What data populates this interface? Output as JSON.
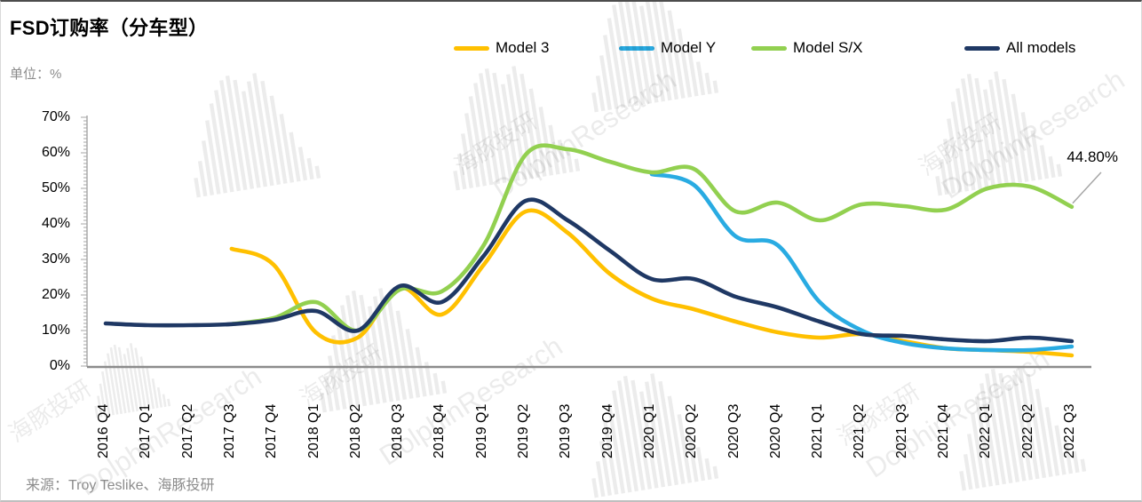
{
  "page": {
    "title": "FSD订购率（分车型）",
    "unit_label": "单位：%",
    "source": "来源：Troy Teslike、海豚投研"
  },
  "watermark": {
    "cn": "海豚投研",
    "en": "DolphinResearch"
  },
  "chart_data": {
    "type": "line",
    "title": "FSD订购率（分车型）",
    "unit": "%",
    "legend_position": "top",
    "grid": false,
    "ylim": [
      0,
      70
    ],
    "y_ticks": [
      "0%",
      "10%",
      "20%",
      "30%",
      "40%",
      "50%",
      "60%",
      "70%"
    ],
    "categories": [
      "2016 Q4",
      "2017 Q1",
      "2017 Q2",
      "2017 Q3",
      "2017 Q4",
      "2018 Q1",
      "2018 Q2",
      "2018 Q3",
      "2018 Q4",
      "2019 Q1",
      "2019 Q2",
      "2019 Q3",
      "2019 Q4",
      "2020 Q1",
      "2020 Q2",
      "2020 Q3",
      "2020 Q4",
      "2021 Q1",
      "2021 Q2",
      "2021 Q3",
      "2021 Q4",
      "2022 Q1",
      "2022 Q2",
      "2022 Q3"
    ],
    "series": [
      {
        "name": "Model 3",
        "color": "#FFC000",
        "values": [
          null,
          null,
          null,
          33,
          28.5,
          9.5,
          8,
          22,
          14.5,
          28.5,
          43.5,
          37.5,
          26,
          19,
          16,
          12.5,
          9.5,
          8,
          9,
          7,
          5,
          4.5,
          4,
          3
        ]
      },
      {
        "name": "Model Y",
        "color": "#29ABE2",
        "values": [
          null,
          null,
          null,
          null,
          null,
          null,
          null,
          null,
          null,
          null,
          null,
          null,
          null,
          54,
          51,
          36.5,
          34,
          18,
          10,
          6.5,
          5,
          4.5,
          4.5,
          5.5
        ]
      },
      {
        "name": "Model S/X",
        "color": "#92D050",
        "values": [
          null,
          null,
          null,
          11.8,
          13.5,
          18,
          10,
          21.5,
          21,
          34,
          59.5,
          61,
          57.5,
          54.5,
          55.5,
          43.5,
          46,
          41,
          45.5,
          45,
          44,
          50,
          50.5,
          44.8
        ]
      },
      {
        "name": "All models",
        "color": "#1F3864",
        "values": [
          12,
          11.5,
          11.5,
          11.8,
          13,
          15.5,
          10,
          22.5,
          18,
          31,
          46.5,
          41,
          32.5,
          24.5,
          24.5,
          19.5,
          16.5,
          12.5,
          9,
          8.5,
          7.5,
          7,
          8,
          7
        ]
      }
    ],
    "annotation": {
      "text": "44.80%",
      "series": "Model S/X",
      "category": "2022 Q3",
      "value": 44.8
    }
  }
}
